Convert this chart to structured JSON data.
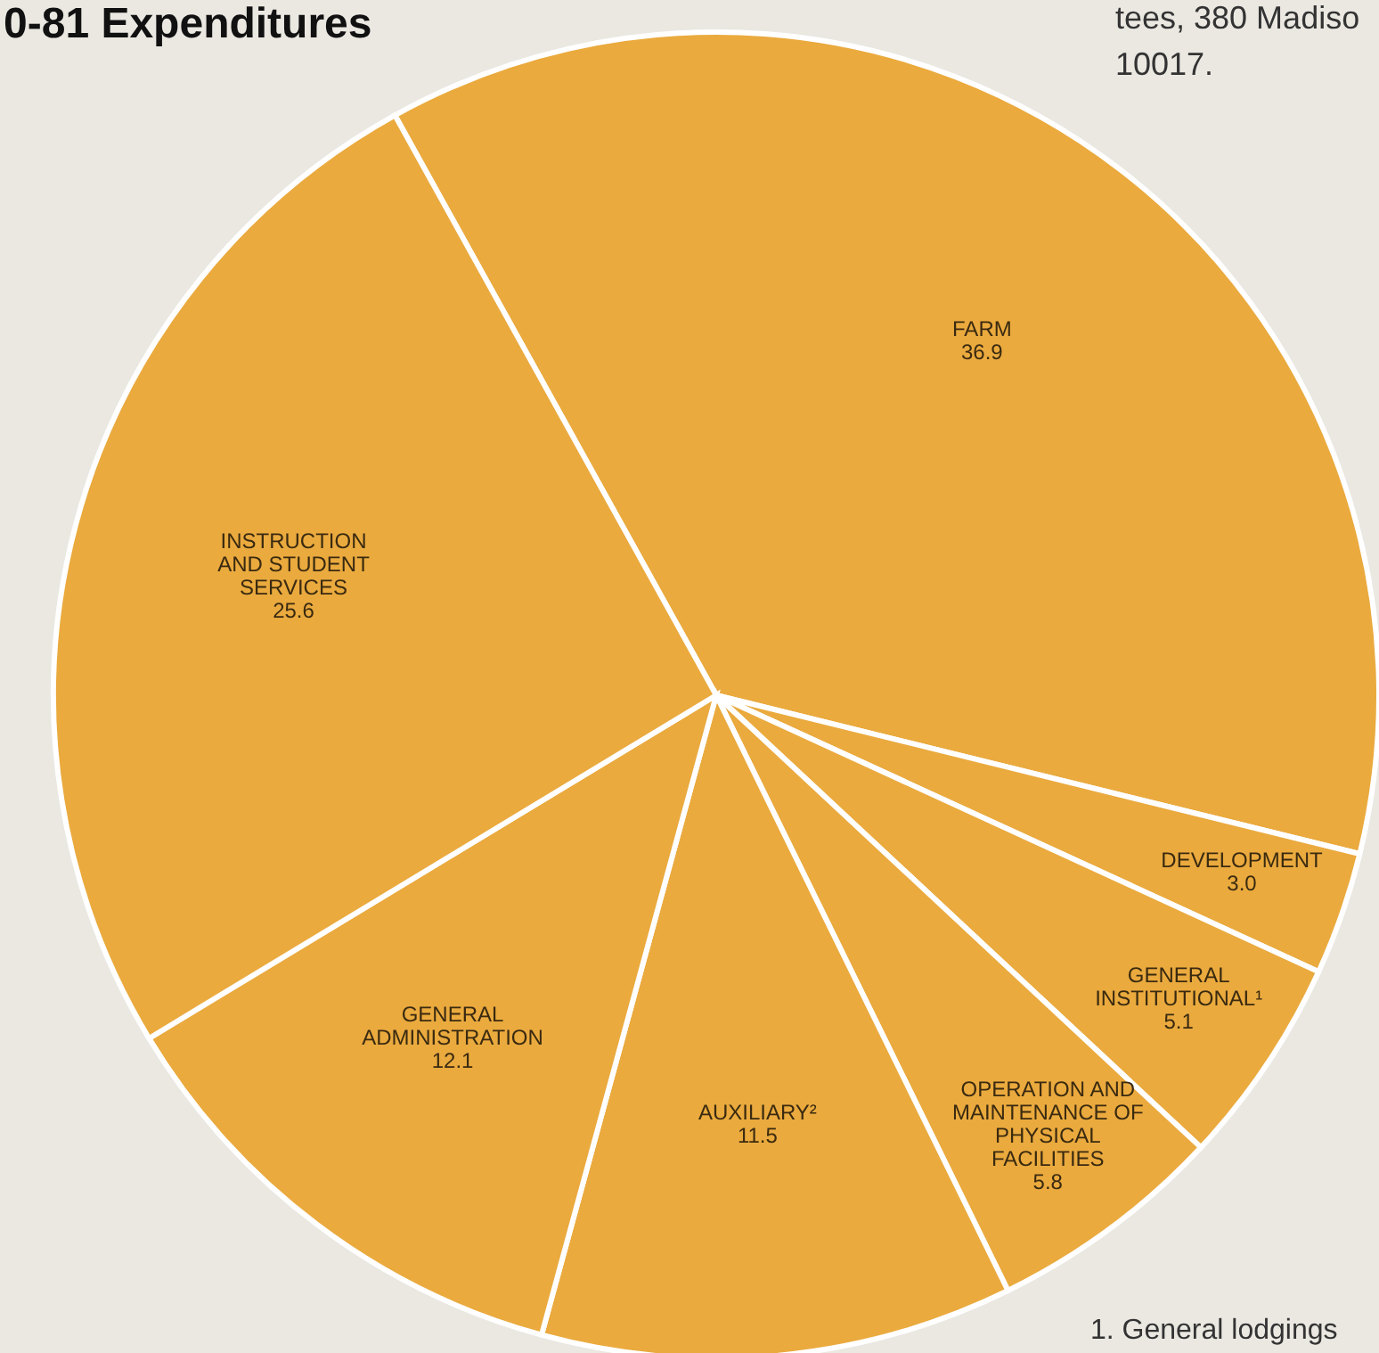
{
  "chart_data": {
    "type": "pie",
    "title": "0-81 Expenditures",
    "categories": [
      "FARM",
      "DEVELOPMENT",
      "GENERAL\nINSTITUTIONAL¹",
      "OPERATION AND\nMAINTENANCE OF\nPHYSICAL\nFACILITIES",
      "AUXILIARY²",
      "GENERAL\nADMINISTRATION",
      "INSTRUCTION\nAND STUDENT\nSERVICES"
    ],
    "values": [
      36.9,
      3.0,
      5.1,
      5.8,
      11.5,
      12.1,
      25.6
    ],
    "value_labels": [
      "36.9",
      "3.0",
      "5.1",
      "5.8",
      "11.5",
      "12.1",
      "25.6"
    ],
    "colors": [
      "#eaaa3e",
      "#eaaa3e",
      "#eaaa3e",
      "#eaaa3e",
      "#eaaa3e",
      "#eaaa3e",
      "#eaaa3e"
    ],
    "annotations": [
      "tees, 380 Madiso",
      "10017.",
      "1. General lodgings"
    ]
  }
}
